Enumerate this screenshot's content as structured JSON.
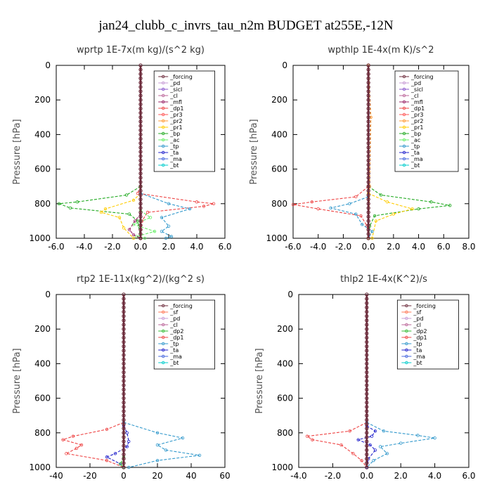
{
  "title": "jan24_clubb_c_invrs_tau_n2m  BUDGET at255E,-12N",
  "series_colors": {
    "_forcing": "#6b2a3a",
    "_pd": "#c79bd6",
    "_sicl": "#8855cc",
    "_cl": "#bb6699",
    "_mfl": "#992266",
    "_dp1": "#ee4444",
    "_pr3": "#ff5555",
    "_pr2": "#ff9933",
    "_pr1": "#ffcc00",
    "_bp": "#22aa22",
    "_ac": "#66ee66",
    "_tp": "#3399cc",
    "_ta": "#2222cc",
    "_ma": "#4466dd",
    "_bt": "#00cccc",
    "_sf": "#ff7755",
    "_dp2": "#33bb33"
  },
  "chart_data": [
    {
      "type": "line",
      "title": "wprtp   1E-7x(m kg)/(s^2 kg)",
      "ylabel": "Pressure [hPa]",
      "xlim": [
        -6,
        6
      ],
      "ylim": [
        1000,
        0
      ],
      "xticks": [
        "-6.0",
        "-4.0",
        "-2.0",
        "0.0",
        "2.0",
        "4.0",
        "6.0"
      ],
      "yticks": [
        "0",
        "200",
        "400",
        "600",
        "800",
        "1000"
      ],
      "legend": [
        "_forcing",
        "_pd",
        "_sicl",
        "_cl",
        "_mfl",
        "_dp1",
        "_pr3",
        "_pr2",
        "_pr1",
        "_bp",
        "_ac",
        "_tp",
        "_ta",
        "_ma",
        "_bt"
      ],
      "series": [
        {
          "name": "_dp1",
          "points": [
            [
              0,
              700
            ],
            [
              -0.2,
              740
            ],
            [
              4,
              790
            ],
            [
              5.2,
              800
            ],
            [
              4.5,
              815
            ],
            [
              0.5,
              850
            ],
            [
              0.1,
              900
            ],
            [
              0,
              1000
            ]
          ]
        },
        {
          "name": "_bp",
          "points": [
            [
              0,
              700
            ],
            [
              -1,
              750
            ],
            [
              -4.5,
              790
            ],
            [
              -5.8,
              800
            ],
            [
              -5,
              825
            ],
            [
              -0.8,
              860
            ],
            [
              -0.2,
              900
            ],
            [
              0,
              1000
            ]
          ]
        },
        {
          "name": "_pr1",
          "points": [
            [
              0,
              740
            ],
            [
              -0.5,
              780
            ],
            [
              -2.5,
              830
            ],
            [
              -2.8,
              850
            ],
            [
              -1.5,
              880
            ],
            [
              -1.2,
              940
            ],
            [
              -0.5,
              1000
            ]
          ]
        },
        {
          "name": "_tp",
          "points": [
            [
              0,
              740
            ],
            [
              2,
              800
            ],
            [
              3.5,
              830
            ],
            [
              1.5,
              880
            ],
            [
              2,
              930
            ],
            [
              1.5,
              960
            ],
            [
              2.2,
              990
            ],
            [
              1.8,
              1000
            ]
          ]
        },
        {
          "name": "_ac",
          "points": [
            [
              0,
              840
            ],
            [
              0.7,
              880
            ],
            [
              -0.5,
              920
            ],
            [
              1,
              960
            ],
            [
              -0.3,
              990
            ],
            [
              0.3,
              1000
            ]
          ]
        },
        {
          "name": "_mfl",
          "points": [
            [
              0,
              860
            ],
            [
              -0.4,
              900
            ],
            [
              -0.8,
              950
            ],
            [
              -0.5,
              980
            ],
            [
              0,
              1000
            ]
          ]
        },
        {
          "name": "_forcing",
          "points": [
            [
              0,
              0
            ],
            [
              0,
              1000
            ]
          ]
        }
      ]
    },
    {
      "type": "line",
      "title": "wpthlp   1E-4x(m K)/s^2",
      "ylabel": "Pressure [hPa]",
      "xlim": [
        -6,
        8
      ],
      "ylim": [
        1000,
        0
      ],
      "xticks": [
        "-6.0",
        "-4.0",
        "-2.0",
        "0.0",
        "2.0",
        "4.0",
        "6.0",
        "8.0"
      ],
      "yticks": [
        "0",
        "200",
        "400",
        "600",
        "800",
        "1000"
      ],
      "legend": [
        "_forcing",
        "_pd",
        "_sicl",
        "_cl",
        "_mfl",
        "_dp1",
        "_pr3",
        "_pr2",
        "_pr1",
        "_bp",
        "_ac",
        "_tp",
        "_ta",
        "_ma",
        "_bt"
      ],
      "series": [
        {
          "name": "_bp",
          "points": [
            [
              0,
              700
            ],
            [
              1,
              750
            ],
            [
              5,
              790
            ],
            [
              6.5,
              810
            ],
            [
              4,
              830
            ],
            [
              0.5,
              870
            ],
            [
              0.1,
              930
            ],
            [
              0,
              1000
            ]
          ]
        },
        {
          "name": "_dp1",
          "points": [
            [
              0,
              700
            ],
            [
              -1,
              760
            ],
            [
              -4.5,
              790
            ],
            [
              -6,
              805
            ],
            [
              -4,
              830
            ],
            [
              -0.6,
              870
            ],
            [
              -0.1,
              930
            ],
            [
              0,
              1000
            ]
          ]
        },
        {
          "name": "_pr1",
          "points": [
            [
              0,
              740
            ],
            [
              1.5,
              790
            ],
            [
              3.5,
              830
            ],
            [
              2,
              860
            ],
            [
              0.6,
              900
            ],
            [
              0.3,
              1000
            ]
          ]
        },
        {
          "name": "_tp",
          "points": [
            [
              0,
              760
            ],
            [
              -1.5,
              800
            ],
            [
              -3,
              825
            ],
            [
              -1,
              860
            ],
            [
              -0.5,
              920
            ],
            [
              0.3,
              960
            ],
            [
              0,
              1000
            ]
          ]
        },
        {
          "name": "_pr2",
          "points": [
            [
              0,
              0
            ],
            [
              0.2,
              300
            ],
            [
              0.1,
              700
            ],
            [
              0,
              1000
            ]
          ]
        },
        {
          "name": "_forcing",
          "points": [
            [
              0,
              0
            ],
            [
              0,
              1000
            ]
          ]
        }
      ]
    },
    {
      "type": "line",
      "title": "rtp2   1E-11x(kg^2)/(kg^2 s)",
      "ylabel": "Pressure [hPa]",
      "xlim": [
        -40,
        60
      ],
      "ylim": [
        1000,
        0
      ],
      "xticks": [
        "-40",
        "-20",
        "0",
        "20",
        "40",
        "60"
      ],
      "yticks": [
        "0",
        "200",
        "400",
        "600",
        "800",
        "1000"
      ],
      "legend": [
        "_forcing",
        "_sf",
        "_pd",
        "_cl",
        "_dp2",
        "_dp1",
        "_tp",
        "_ta",
        "_ma",
        "_bt"
      ],
      "series": [
        {
          "name": "_dp1",
          "points": [
            [
              0,
              740
            ],
            [
              -10,
              780
            ],
            [
              -30,
              820
            ],
            [
              -36,
              840
            ],
            [
              -25,
              870
            ],
            [
              -28,
              890
            ],
            [
              -34,
              920
            ],
            [
              -10,
              960
            ],
            [
              0,
              1000
            ]
          ]
        },
        {
          "name": "_tp",
          "points": [
            [
              0,
              740
            ],
            [
              20,
              800
            ],
            [
              35,
              830
            ],
            [
              20,
              870
            ],
            [
              25,
              900
            ],
            [
              45,
              930
            ],
            [
              20,
              960
            ],
            [
              3,
              1000
            ]
          ]
        },
        {
          "name": "_ta",
          "points": [
            [
              0,
              760
            ],
            [
              2,
              800
            ],
            [
              3,
              850
            ],
            [
              2,
              880
            ],
            [
              -5,
              920
            ],
            [
              -10,
              940
            ],
            [
              -2,
              980
            ],
            [
              0,
              1000
            ]
          ]
        },
        {
          "name": "_dp2",
          "points": [
            [
              0,
              940
            ],
            [
              -2,
              980
            ],
            [
              0,
              1000
            ]
          ]
        },
        {
          "name": "_forcing",
          "points": [
            [
              0,
              0
            ],
            [
              0,
              1000
            ]
          ]
        }
      ]
    },
    {
      "type": "line",
      "title": "thlp2   1E-4x(K^2)/s",
      "ylabel": "Pressure [hPa]",
      "xlim": [
        -4,
        6
      ],
      "ylim": [
        1000,
        0
      ],
      "xticks": [
        "-4.0",
        "-2.0",
        "0.0",
        "2.0",
        "4.0",
        "6.0"
      ],
      "yticks": [
        "0",
        "200",
        "400",
        "600",
        "800",
        "1000"
      ],
      "legend": [
        "_forcing",
        "_sf",
        "_pd",
        "_cl",
        "_dp2",
        "_dp1",
        "_tp",
        "_ta",
        "_ma",
        "_bt"
      ],
      "series": [
        {
          "name": "_dp1",
          "points": [
            [
              0,
              740
            ],
            [
              -1,
              790
            ],
            [
              -3.5,
              820
            ],
            [
              -3.2,
              840
            ],
            [
              -1.5,
              870
            ],
            [
              -0.8,
              920
            ],
            [
              -0.3,
              960
            ],
            [
              0,
              1000
            ]
          ]
        },
        {
          "name": "_tp",
          "points": [
            [
              0,
              740
            ],
            [
              1,
              790
            ],
            [
              3,
              815
            ],
            [
              4,
              830
            ],
            [
              2,
              860
            ],
            [
              0.8,
              880
            ],
            [
              1.2,
              920
            ],
            [
              0.4,
              960
            ],
            [
              0,
              1000
            ]
          ]
        },
        {
          "name": "_ta",
          "points": [
            [
              0,
              760
            ],
            [
              0.5,
              790
            ],
            [
              0.3,
              820
            ],
            [
              -0.5,
              840
            ],
            [
              0.2,
              870
            ],
            [
              0.5,
              900
            ],
            [
              0.1,
              950
            ],
            [
              0,
              1000
            ]
          ]
        },
        {
          "name": "_forcing",
          "points": [
            [
              0,
              0
            ],
            [
              0,
              1000
            ]
          ]
        }
      ]
    }
  ]
}
